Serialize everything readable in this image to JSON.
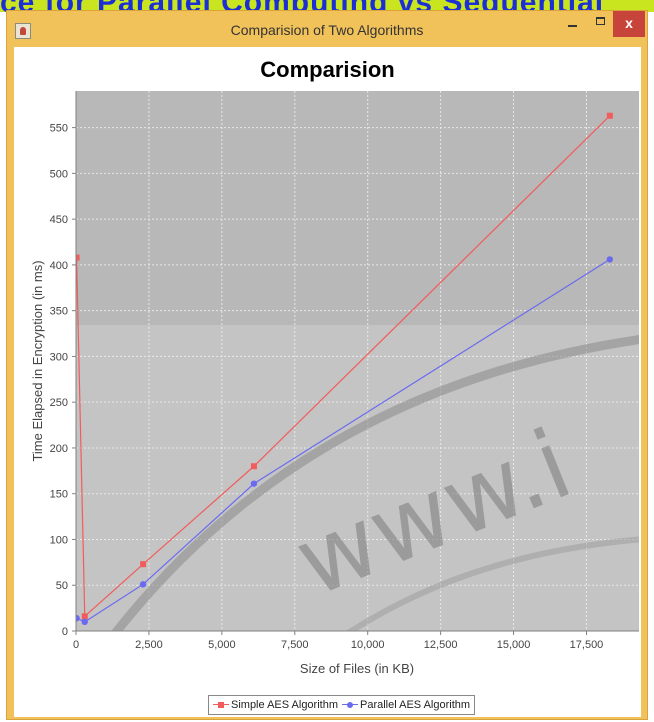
{
  "background": {
    "text": "ce for Parallel Computing vs Sequential"
  },
  "window": {
    "title": "Comparision of Two Algorithms",
    "controls": {
      "minimize": "",
      "maximize": "",
      "close": "x"
    }
  },
  "chart_data": {
    "type": "line",
    "title": "Comparision",
    "xlabel": "Size of Files (in KB)",
    "ylabel": "Time Elapsed in Encryption (in ms)",
    "xlim": [
      0,
      19300
    ],
    "ylim": [
      0,
      590
    ],
    "xticks": [
      0,
      2500,
      5000,
      7500,
      10000,
      12500,
      15000,
      17500
    ],
    "xtick_labels": [
      "0",
      "2,500",
      "5,000",
      "7,500",
      "10,000",
      "12,500",
      "15,000",
      "17,500"
    ],
    "yticks": [
      0,
      50,
      100,
      150,
      200,
      250,
      300,
      350,
      400,
      450,
      500,
      550
    ],
    "ytick_labels": [
      "0",
      "50",
      "100",
      "150",
      "200",
      "250",
      "300",
      "350",
      "400",
      "450",
      "500",
      "550"
    ],
    "grid": true,
    "legend_position": "bottom-center",
    "series": [
      {
        "name": "Simple AES Algorithm",
        "color": "#f25c5c",
        "marker": "square",
        "x": [
          20,
          300,
          2300,
          6100,
          18300
        ],
        "y": [
          408,
          16,
          73,
          180,
          563
        ]
      },
      {
        "name": "Parallel AES Algorithm",
        "color": "#6a6af0",
        "marker": "circle",
        "x": [
          20,
          300,
          2300,
          6100,
          18300
        ],
        "y": [
          14,
          10,
          51,
          161,
          406
        ]
      }
    ]
  },
  "watermark": {
    "text": "www.i"
  },
  "colors": {
    "titlebar": "#f2c25a",
    "close_button": "#c7443b",
    "plot_background": "#c4c4c4"
  }
}
